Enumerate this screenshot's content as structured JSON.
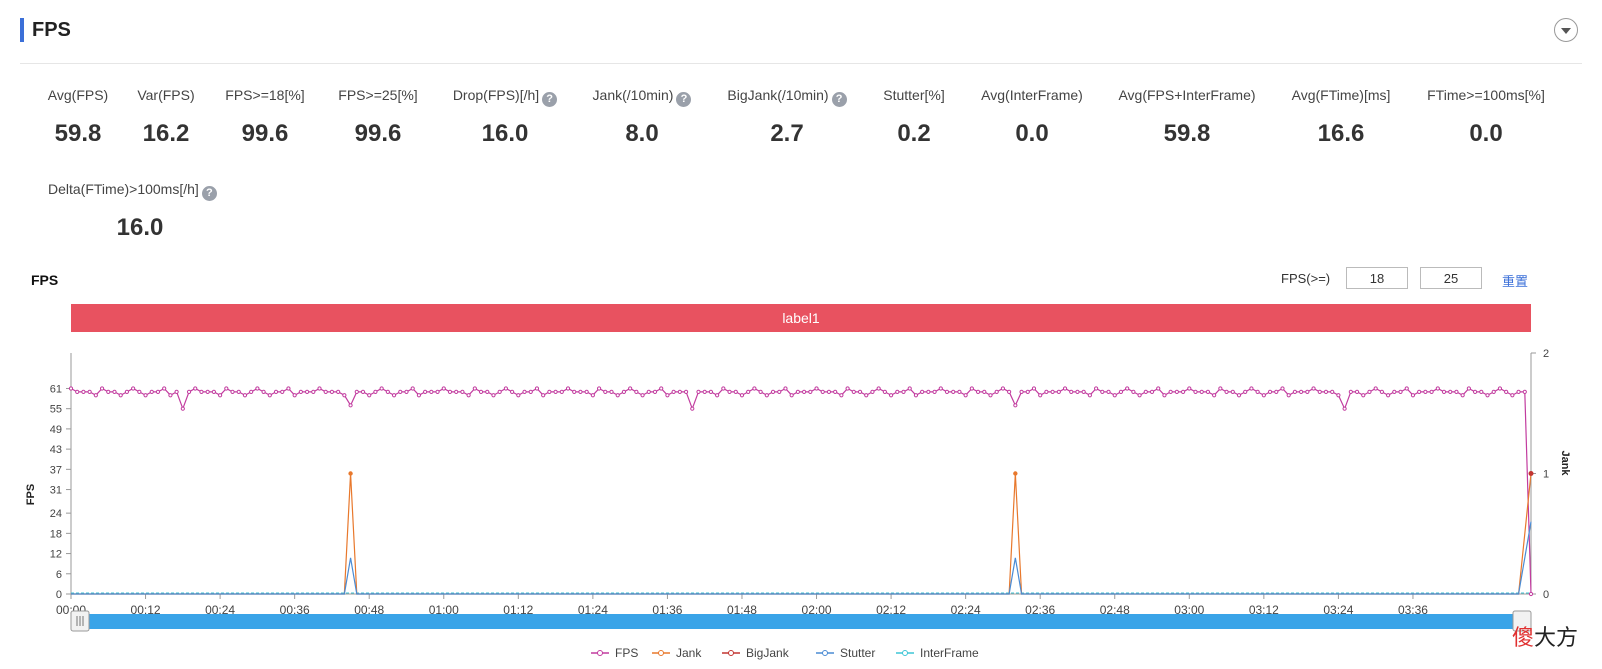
{
  "header": {
    "title": "FPS"
  },
  "metrics_row1": [
    {
      "label": "Avg(FPS)",
      "value": "59.8",
      "help": false
    },
    {
      "label": "Var(FPS)",
      "value": "16.2",
      "help": false
    },
    {
      "label": "FPS>=18[%]",
      "value": "99.6",
      "help": false
    },
    {
      "label": "FPS>=25[%]",
      "value": "99.6",
      "help": false
    },
    {
      "label": "Drop(FPS)[/h]",
      "value": "16.0",
      "help": true
    },
    {
      "label": "Jank(/10min)",
      "value": "8.0",
      "help": true
    },
    {
      "label": "BigJank(/10min)",
      "value": "2.7",
      "help": true
    },
    {
      "label": "Stutter[%]",
      "value": "0.2",
      "help": false
    },
    {
      "label": "Avg(InterFrame)",
      "value": "0.0",
      "help": false
    },
    {
      "label": "Avg(FPS+InterFrame)",
      "value": "59.8",
      "help": false
    },
    {
      "label": "Avg(FTime)[ms]",
      "value": "16.6",
      "help": false
    },
    {
      "label": "FTime>=100ms[%]",
      "value": "0.0",
      "help": false
    }
  ],
  "metrics_row2": [
    {
      "label": "Delta(FTime)>100ms[/h]",
      "value": "16.0",
      "help": true
    }
  ],
  "help_glyph": "?",
  "chart_section": {
    "title": "FPS",
    "fps_threshold_label": "FPS(>=)",
    "threshold_low": "18",
    "threshold_high": "25",
    "reset_label": "重置",
    "band_label": "label1"
  },
  "watermark": {
    "red": "傻",
    "rest": "大方"
  },
  "colors": {
    "fps": "#c23c9f",
    "jank": "#e8782c",
    "bigjank": "#c23531",
    "stutter": "#4a8bd4",
    "interframe": "#3ec5d6",
    "band": "#e85260",
    "slider": "#3aa4e8"
  },
  "chart_data": {
    "type": "line",
    "x_ticks": [
      "00:00",
      "00:12",
      "00:24",
      "00:36",
      "00:48",
      "01:00",
      "01:12",
      "01:24",
      "01:36",
      "01:48",
      "02:00",
      "02:12",
      "02:24",
      "02:36",
      "02:48",
      "03:00",
      "03:12",
      "03:24",
      "03:36"
    ],
    "x_range_seconds": [
      0,
      235
    ],
    "ylabel": "FPS",
    "y2label": "Jank",
    "y_ticks": [
      0,
      6,
      12,
      18,
      24,
      31,
      37,
      43,
      49,
      55,
      61
    ],
    "y_range": [
      0,
      65
    ],
    "y2_ticks": [
      0,
      1,
      2
    ],
    "y2_range": [
      0,
      2
    ],
    "legend": [
      "FPS",
      "Jank",
      "BigJank",
      "Stutter",
      "InterFrame"
    ],
    "legend_position": "bottom",
    "fps_baseline": 60,
    "fps_dips": [
      {
        "x": 18,
        "y": 55
      },
      {
        "x": 45,
        "y": 56
      },
      {
        "x": 100,
        "y": 55
      },
      {
        "x": 152,
        "y": 56
      },
      {
        "x": 205,
        "y": 55
      }
    ],
    "fps_end_drop": {
      "x": 235,
      "y": 0
    },
    "jank_spikes": [
      {
        "x": 45,
        "y": 1
      },
      {
        "x": 152,
        "y": 1
      }
    ],
    "stutter_spikes": [
      {
        "x": 45,
        "y": 0.3
      },
      {
        "x": 152,
        "y": 0.3
      }
    ],
    "end_markers": {
      "jank": 1,
      "stutter": 0.6
    }
  }
}
